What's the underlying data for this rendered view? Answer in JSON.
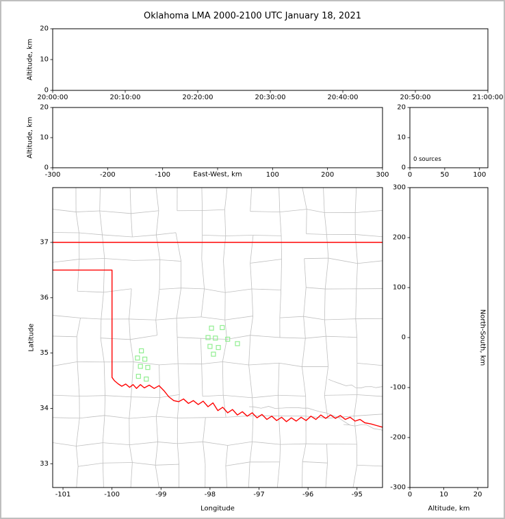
{
  "title": "Oklahoma LMA 2000-2100 UTC January 18, 2021",
  "labels": {
    "altitude_km": "Altitude, km",
    "east_west": "East-West, km",
    "latitude": "Latitude",
    "longitude": "Longitude",
    "north_south": "North-South, km"
  },
  "colors": {
    "axis": "#000000",
    "county_lines": "#bfbfbf",
    "state_border": "#ff0000",
    "station_marker": "#90ee90",
    "background": "#ffffff",
    "page_border": "#bebebe"
  },
  "chart_data": [
    {
      "id": "time_height",
      "type": "scatter",
      "ylabel": "Altitude, km",
      "xlim": [
        0,
        6
      ],
      "xticks": [
        0,
        1,
        2,
        3,
        4,
        5,
        6
      ],
      "x_tick_labels": [
        "20:00:00",
        "20:10:00",
        "20:20:00",
        "20:30:00",
        "20:40:00",
        "20:50:00",
        "21:00:00"
      ],
      "ylim": [
        0,
        20
      ],
      "yticks": [
        0,
        10,
        20
      ],
      "points": []
    },
    {
      "id": "east_west_height",
      "type": "scatter",
      "xlabel": "East-West, km",
      "ylabel": "Altitude, km",
      "xlim": [
        -300,
        300
      ],
      "xticks": [
        -300,
        -200,
        -100,
        0,
        100,
        200,
        300
      ],
      "ylim": [
        0,
        20
      ],
      "yticks": [
        0,
        10,
        20
      ],
      "points": []
    },
    {
      "id": "altitude_histogram",
      "type": "scatter",
      "annotation": "0 sources",
      "xlim": [
        0,
        112
      ],
      "xticks": [
        0,
        50,
        100
      ],
      "ylim": [
        0,
        20
      ],
      "yticks": [
        0,
        10,
        20
      ],
      "points": []
    },
    {
      "id": "plan_view",
      "type": "scatter",
      "xlabel": "Longitude",
      "ylabel": "Latitude",
      "xlim": [
        -101.21,
        -94.48
      ],
      "xticks": [
        -101,
        -100,
        -99,
        -98,
        -97,
        -96,
        -95
      ],
      "ylim": [
        32.57,
        37.99
      ],
      "yticks": [
        33,
        34,
        35,
        36,
        37
      ],
      "stations_lon_lat": [
        [
          -97.97,
          35.45
        ],
        [
          -97.75,
          35.46
        ],
        [
          -98.04,
          35.28
        ],
        [
          -97.89,
          35.27
        ],
        [
          -97.64,
          35.25
        ],
        [
          -98.0,
          35.12
        ],
        [
          -97.83,
          35.1
        ],
        [
          -97.44,
          35.17
        ],
        [
          -97.93,
          34.98
        ],
        [
          -99.4,
          35.04
        ],
        [
          -99.48,
          34.91
        ],
        [
          -99.33,
          34.89
        ],
        [
          -99.42,
          34.76
        ],
        [
          -99.27,
          34.74
        ],
        [
          -99.46,
          34.58
        ],
        [
          -99.3,
          34.53
        ]
      ],
      "state_border_segments": [
        [
          [
            -101.21,
            37.0
          ],
          [
            -94.48,
            37.0
          ]
        ],
        [
          [
            -101.21,
            36.5
          ],
          [
            -100.0,
            36.5
          ],
          [
            -100.0,
            34.56
          ],
          [
            -99.95,
            34.5
          ],
          [
            -99.87,
            34.44
          ],
          [
            -99.8,
            34.4
          ],
          [
            -99.72,
            34.44
          ],
          [
            -99.64,
            34.38
          ],
          [
            -99.57,
            34.43
          ],
          [
            -99.5,
            34.36
          ],
          [
            -99.42,
            34.43
          ],
          [
            -99.34,
            34.37
          ],
          [
            -99.24,
            34.42
          ],
          [
            -99.14,
            34.36
          ],
          [
            -99.04,
            34.41
          ],
          [
            -98.94,
            34.32
          ],
          [
            -98.84,
            34.21
          ],
          [
            -98.74,
            34.14
          ],
          [
            -98.64,
            34.12
          ],
          [
            -98.54,
            34.17
          ],
          [
            -98.44,
            34.09
          ],
          [
            -98.34,
            34.14
          ],
          [
            -98.24,
            34.07
          ],
          [
            -98.14,
            34.13
          ],
          [
            -98.04,
            34.03
          ],
          [
            -97.94,
            34.1
          ],
          [
            -97.84,
            33.96
          ],
          [
            -97.74,
            34.02
          ],
          [
            -97.64,
            33.92
          ],
          [
            -97.54,
            33.98
          ],
          [
            -97.44,
            33.88
          ],
          [
            -97.34,
            33.94
          ],
          [
            -97.24,
            33.86
          ],
          [
            -97.14,
            33.92
          ],
          [
            -97.04,
            33.83
          ],
          [
            -96.94,
            33.89
          ],
          [
            -96.84,
            33.8
          ],
          [
            -96.74,
            33.86
          ],
          [
            -96.64,
            33.78
          ],
          [
            -96.54,
            33.84
          ],
          [
            -96.44,
            33.76
          ],
          [
            -96.34,
            33.83
          ],
          [
            -96.24,
            33.77
          ],
          [
            -96.14,
            33.84
          ],
          [
            -96.04,
            33.78
          ],
          [
            -95.94,
            33.86
          ],
          [
            -95.84,
            33.8
          ],
          [
            -95.74,
            33.88
          ],
          [
            -95.64,
            33.82
          ],
          [
            -95.54,
            33.88
          ],
          [
            -95.44,
            33.82
          ],
          [
            -95.34,
            33.87
          ],
          [
            -95.24,
            33.8
          ],
          [
            -95.14,
            33.84
          ],
          [
            -95.04,
            33.77
          ],
          [
            -94.94,
            33.8
          ],
          [
            -94.84,
            33.74
          ],
          [
            -94.72,
            33.72
          ],
          [
            -94.6,
            33.69
          ],
          [
            -94.48,
            33.66
          ]
        ]
      ]
    },
    {
      "id": "north_south_height",
      "type": "scatter",
      "xlabel": "Altitude, km",
      "ylabel": "North-South, km",
      "xlim": [
        0,
        23
      ],
      "xticks": [
        0,
        10,
        20
      ],
      "ylim": [
        -300,
        300
      ],
      "yticks": [
        -300,
        -200,
        -100,
        0,
        100,
        200,
        300
      ],
      "points": []
    }
  ]
}
